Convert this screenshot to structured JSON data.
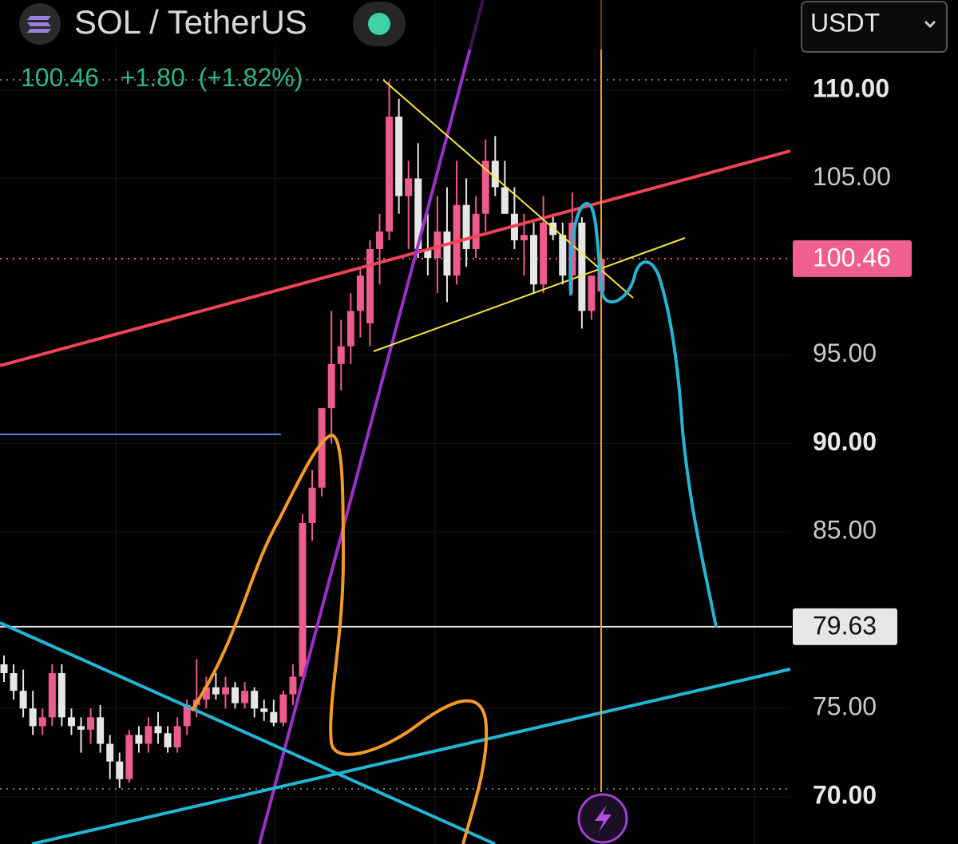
{
  "header": {
    "symbol": "SOL / TetherUS",
    "quote": "USDT",
    "last": "100.46",
    "change": "+1.80",
    "change_pct": "(+1.82%)"
  },
  "chart_data": {
    "type": "candlestick",
    "open": [
      77.5,
      77,
      76,
      75,
      74,
      74.5,
      77,
      74.5,
      74,
      73.8,
      74.5,
      73,
      72,
      71,
      73.5,
      73,
      74,
      73.6,
      72.8,
      74,
      75.2,
      75.5,
      76.2,
      75.8,
      76.2,
      75.3,
      76,
      75,
      74.8,
      74.2,
      75.8,
      76.8,
      85.5,
      87.5,
      92,
      94.5,
      95.5,
      97.5,
      96.8,
      101,
      102,
      108.5,
      104,
      105,
      101,
      100.5,
      102,
      99.5,
      103.5,
      101,
      103,
      106,
      104.5,
      103,
      101.5,
      101.8,
      99,
      102.5,
      101.8,
      99.5,
      102.5,
      97.5,
      98.6
    ],
    "high": [
      78,
      77.5,
      77.2,
      76,
      75,
      77.5,
      77.5,
      75,
      74.5,
      75,
      75.2,
      73.5,
      72.5,
      73.8,
      74,
      74.5,
      74.8,
      74,
      74.5,
      75.5,
      77.8,
      76.8,
      77,
      76.8,
      76.5,
      76.5,
      76.2,
      75.5,
      75.5,
      76,
      77.5,
      86,
      88.5,
      92,
      97.5,
      97,
      98.5,
      100,
      101.5,
      103,
      110.5,
      109.5,
      106,
      107,
      103,
      104,
      104.5,
      106,
      105,
      104,
      107.2,
      107.4,
      106,
      104.5,
      103,
      102.5,
      104,
      103,
      102.5,
      104.2,
      102.8,
      99.5,
      101
    ],
    "low": [
      76.5,
      75.5,
      74.5,
      73.5,
      73.5,
      74,
      74,
      73.5,
      72.5,
      73,
      72.5,
      71,
      70.5,
      70.8,
      72.5,
      72.5,
      73,
      72.5,
      72.5,
      73.5,
      74.5,
      75,
      75.5,
      75,
      75,
      75,
      74.5,
      74.3,
      74,
      74,
      75.2,
      76.5,
      84.5,
      87,
      90,
      93,
      94.5,
      96,
      95.5,
      99,
      101.5,
      103,
      101,
      100.5,
      99.5,
      98.5,
      98,
      99,
      100,
      100.5,
      102,
      104,
      103,
      101,
      99.5,
      98.5,
      98.5,
      101.5,
      99,
      98.5,
      96.5,
      97,
      98
    ],
    "close": [
      77,
      76,
      75,
      74,
      74.5,
      77,
      74.5,
      74,
      73.8,
      74.5,
      73,
      72,
      71,
      73.5,
      73,
      74,
      73.6,
      72.8,
      74,
      75.2,
      75.5,
      76.2,
      75.8,
      76.2,
      75.3,
      76,
      75,
      74.8,
      74.2,
      75.8,
      76.8,
      85.5,
      87.5,
      92,
      94.5,
      95.5,
      97.5,
      99.5,
      101,
      102,
      108.5,
      104,
      105,
      101,
      100.5,
      102,
      99.5,
      103.5,
      101,
      103,
      106,
      104.5,
      103,
      101.5,
      101.8,
      99,
      102.5,
      101.8,
      99.5,
      102.5,
      97.5,
      99.5,
      100.46
    ],
    "up_color": "#ef5b8c",
    "down_color": "#e6e6e6",
    "ylim": [
      67.33,
      115.1
    ],
    "yticks": [
      {
        "value": 70,
        "label": "70.00"
      },
      {
        "value": 75,
        "label": "75.00"
      },
      {
        "value": 85,
        "label": "85.00"
      },
      {
        "value": 90,
        "label": "90.00"
      },
      {
        "value": 95,
        "label": "95.00"
      },
      {
        "value": 105,
        "label": "105.00"
      },
      {
        "value": 110,
        "label": "110.00"
      }
    ],
    "price_lines": [
      {
        "value": 100.46,
        "label": "100.46",
        "color": "#f0608f"
      },
      {
        "value": 79.63,
        "label": "79.63",
        "color": "#e6e6e6"
      }
    ]
  }
}
